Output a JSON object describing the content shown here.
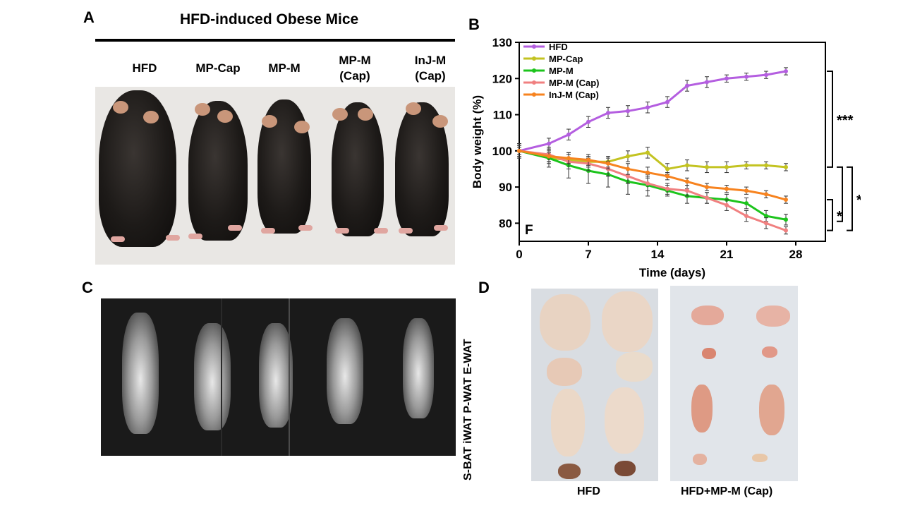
{
  "panels": {
    "a": "A",
    "b": "B",
    "c": "C",
    "d": "D"
  },
  "panel_a": {
    "title": "HFD-induced Obese Mice",
    "groups": [
      {
        "line1": "HFD",
        "line2": ""
      },
      {
        "line1": "MP-Cap",
        "line2": ""
      },
      {
        "line1": "MP-M",
        "line2": ""
      },
      {
        "line1": "MP-M",
        "line2": "(Cap)"
      },
      {
        "line1": "InJ-M",
        "line2": "(Cap)"
      }
    ]
  },
  "panel_d": {
    "fat_labels": "S-BAT iWAT P-WAT E-WAT",
    "groups": [
      "HFD",
      "HFD+MP-M (Cap)"
    ]
  },
  "chart_data": {
    "type": "line",
    "xlabel": "Time (days)",
    "ylabel": "Body weight (%)",
    "xlim": [
      0,
      31
    ],
    "ylim": [
      75,
      130
    ],
    "xticks": [
      0,
      7,
      14,
      21,
      28
    ],
    "yticks": [
      80,
      90,
      100,
      110,
      120,
      130
    ],
    "legend_position": "top-left",
    "corner_label": "F",
    "x": [
      0,
      3,
      5,
      7,
      9,
      11,
      13,
      15,
      17,
      19,
      21,
      23,
      25,
      27
    ],
    "series": [
      {
        "name": "HFD",
        "color": "#b45ee0",
        "values": [
          100,
          102,
          104.5,
          108,
          110.5,
          111,
          112,
          113.5,
          118,
          119,
          120,
          120.5,
          121,
          122
        ],
        "errors": [
          1.5,
          1.5,
          1.5,
          1.5,
          1.5,
          1.5,
          1.5,
          1.5,
          1.5,
          1.5,
          1,
          1,
          1,
          1
        ]
      },
      {
        "name": "MP-Cap",
        "color": "#c3c321",
        "values": [
          100,
          98,
          97.5,
          97,
          97,
          98.5,
          99.5,
          95,
          96,
          95.5,
          95.5,
          96,
          96,
          95.5
        ],
        "errors": [
          1.5,
          1.5,
          1.5,
          1.5,
          1.5,
          1.5,
          1.5,
          1.5,
          1.5,
          1.5,
          1.5,
          1,
          1,
          1
        ]
      },
      {
        "name": "MP-M",
        "color": "#1cc41c",
        "values": [
          100,
          98,
          96,
          94.5,
          93.5,
          91.5,
          90.5,
          89,
          87.5,
          87,
          86.5,
          85.5,
          82,
          81
        ],
        "errors": [
          2,
          2.5,
          3.5,
          3.5,
          3.5,
          3.5,
          3,
          1.5,
          2,
          1.5,
          1.5,
          1.5,
          1.5,
          1.5
        ]
      },
      {
        "name": "MP-M (Cap)",
        "color": "#f08080",
        "values": [
          100,
          99,
          97,
          96.5,
          95,
          93,
          91,
          89.5,
          89,
          87,
          85,
          82,
          80,
          78
        ],
        "errors": [
          2,
          2,
          2,
          2,
          2,
          2,
          2,
          1.5,
          1.5,
          1.5,
          1.5,
          1.5,
          1.5,
          1
        ]
      },
      {
        "name": "InJ-M (Cap)",
        "color": "#f7831f",
        "values": [
          100,
          98.5,
          98,
          97.5,
          96.5,
          95,
          94,
          93,
          91.5,
          90,
          89.5,
          89,
          88,
          86.5
        ],
        "errors": [
          1,
          1.5,
          1.5,
          1.5,
          1.5,
          1.5,
          1.5,
          1,
          1,
          1,
          1,
          1,
          1,
          1
        ]
      }
    ],
    "significance": [
      {
        "label": "***",
        "from": 95.5,
        "to": 122,
        "level": 1
      },
      {
        "label": "*",
        "from": 78,
        "to": 86.5,
        "level": 1
      },
      {
        "label": "***",
        "from": 78,
        "to": 95.5,
        "level": 3
      },
      {
        "label": "",
        "from": 80.5,
        "to": 95.5,
        "level": 2
      }
    ]
  }
}
